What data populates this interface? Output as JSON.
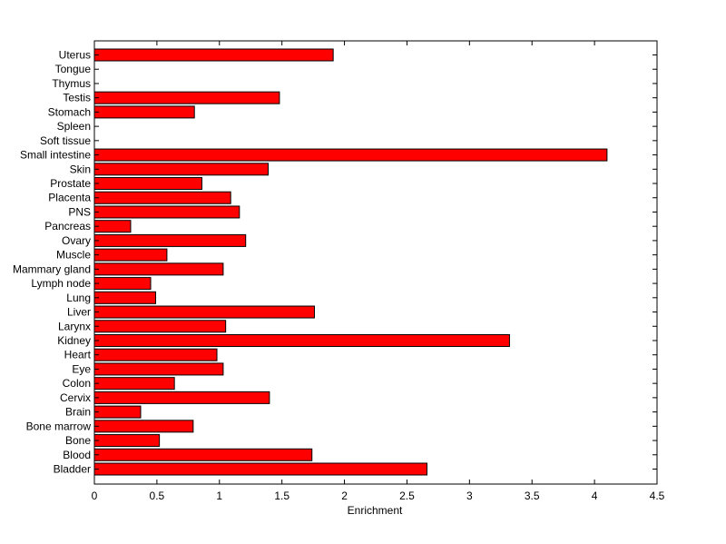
{
  "chart_data": {
    "type": "bar",
    "orientation": "horizontal",
    "title": "",
    "xlabel": "Enrichment",
    "ylabel": "",
    "xlim": [
      0,
      4.5
    ],
    "xticks": [
      0,
      0.5,
      1,
      1.5,
      2,
      2.5,
      3,
      3.5,
      4,
      4.5
    ],
    "xtick_labels": [
      "0",
      "0.5",
      "1",
      "1.5",
      "2",
      "2.5",
      "3",
      "3.5",
      "4",
      "4.5"
    ],
    "grid": false,
    "legend": "none",
    "bar_color": "#ff0000",
    "categories": [
      "Uterus",
      "Tongue",
      "Thymus",
      "Testis",
      "Stomach",
      "Spleen",
      "Soft tissue",
      "Small intestine",
      "Skin",
      "Prostate",
      "Placenta",
      "PNS",
      "Pancreas",
      "Ovary",
      "Muscle",
      "Mammary gland",
      "Lymph node",
      "Lung",
      "Liver",
      "Larynx",
      "Kidney",
      "Heart",
      "Eye",
      "Colon",
      "Cervix",
      "Brain",
      "Bone marrow",
      "Bone",
      "Blood",
      "Bladder"
    ],
    "values": [
      1.91,
      0,
      0,
      1.48,
      0.8,
      0,
      0,
      4.1,
      1.39,
      0.86,
      1.09,
      1.16,
      0.29,
      1.21,
      0.58,
      1.03,
      0.45,
      0.49,
      1.76,
      1.05,
      3.32,
      0.98,
      1.03,
      0.64,
      1.4,
      0.37,
      0.79,
      0.52,
      1.74,
      2.66
    ]
  }
}
